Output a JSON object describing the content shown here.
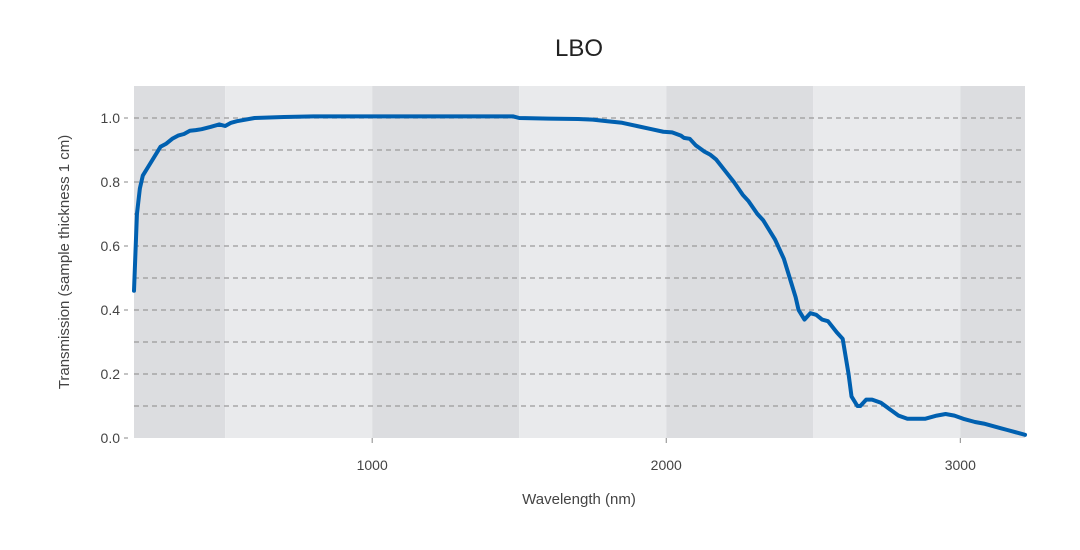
{
  "chart_data": {
    "type": "line",
    "title": "LBO",
    "xlabel": "Wavelength (nm)",
    "ylabel": "Transmission (sample thickness 1 cm)",
    "xlim": [
      190,
      3220
    ],
    "ylim": [
      0,
      1.1
    ],
    "x_ticks": [
      {
        "value": 1000,
        "label": "1000"
      },
      {
        "value": 2000,
        "label": "2000"
      },
      {
        "value": 3000,
        "label": "3000"
      }
    ],
    "y_ticks": [
      {
        "value": 0.0,
        "label": "0.0"
      },
      {
        "value": 0.2,
        "label": "0.2"
      },
      {
        "value": 0.4,
        "label": "0.4"
      },
      {
        "value": 0.6,
        "label": "0.6"
      },
      {
        "value": 0.8,
        "label": "0.8"
      },
      {
        "value": 1.0,
        "label": "1.0"
      }
    ],
    "gridlines_y": [
      0.1,
      0.2,
      0.3,
      0.4,
      0.5,
      0.6,
      0.7,
      0.8,
      0.9,
      1.0
    ],
    "grid": true,
    "legend": "none",
    "band_colors": [
      "#dcdde0",
      "#e9eaec"
    ],
    "band_edges": [
      190,
      500,
      1000,
      1500,
      2000,
      2500,
      3000,
      3220
    ],
    "series": [
      {
        "color": "#0060b0",
        "x": [
          190,
          200,
          210,
          220,
          240,
          280,
          300,
          320,
          340,
          360,
          380,
          400,
          420,
          450,
          480,
          500,
          510,
          520,
          540,
          600,
          700,
          800,
          900,
          1000,
          1100,
          1200,
          1300,
          1400,
          1480,
          1500,
          1600,
          1700,
          1750,
          1800,
          1850,
          1900,
          1950,
          1990,
          2020,
          2050,
          2060,
          2080,
          2100,
          2130,
          2150,
          2170,
          2200,
          2230,
          2260,
          2280,
          2310,
          2330,
          2350,
          2370,
          2400,
          2420,
          2440,
          2450,
          2470,
          2490,
          2510,
          2530,
          2550,
          2580,
          2600,
          2620,
          2630,
          2650,
          2660,
          2680,
          2700,
          2730,
          2760,
          2790,
          2820,
          2850,
          2880,
          2920,
          2950,
          2980,
          3010,
          3050,
          3080,
          3100,
          3140,
          3160,
          3200,
          3220
        ],
        "y": [
          0.46,
          0.7,
          0.78,
          0.82,
          0.85,
          0.91,
          0.92,
          0.935,
          0.945,
          0.95,
          0.96,
          0.962,
          0.965,
          0.972,
          0.98,
          0.975,
          0.98,
          0.985,
          0.99,
          1.0,
          1.003,
          1.005,
          1.005,
          1.005,
          1.005,
          1.005,
          1.005,
          1.005,
          1.005,
          1.0,
          0.998,
          0.997,
          0.995,
          0.99,
          0.985,
          0.975,
          0.965,
          0.957,
          0.955,
          0.945,
          0.938,
          0.935,
          0.915,
          0.895,
          0.885,
          0.87,
          0.835,
          0.8,
          0.76,
          0.74,
          0.7,
          0.68,
          0.65,
          0.62,
          0.56,
          0.5,
          0.44,
          0.4,
          0.37,
          0.39,
          0.385,
          0.37,
          0.365,
          0.33,
          0.31,
          0.2,
          0.13,
          0.1,
          0.1,
          0.12,
          0.12,
          0.11,
          0.09,
          0.07,
          0.06,
          0.06,
          0.06,
          0.07,
          0.075,
          0.07,
          0.06,
          0.05,
          0.045,
          0.04,
          0.03,
          0.025,
          0.015,
          0.01
        ]
      }
    ]
  }
}
